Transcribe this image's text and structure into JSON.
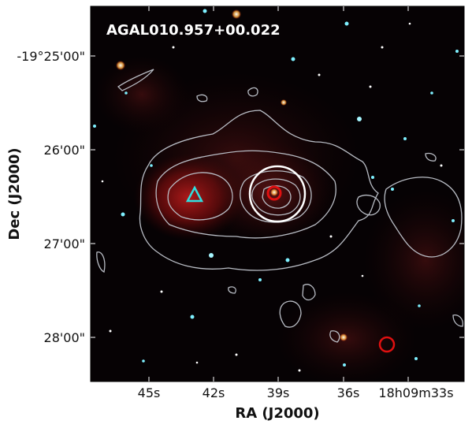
{
  "figure": {
    "title": "AGAL010.957+00.022",
    "x_axis": {
      "label": "RA (J2000)",
      "ticks": [
        "45s",
        "42s",
        "39s",
        "36s",
        "18h09m33s"
      ]
    },
    "y_axis": {
      "label": "Dec (J2000)",
      "ticks": [
        "-19°25'00\"",
        "26'00\"",
        "27'00\"",
        "28'00\""
      ]
    },
    "colors": {
      "background": "#050203",
      "nebula": "#c01818",
      "contour": "#b8bcc4",
      "beam_circle": "#ffffff",
      "marker_triangle": "#30e0e0",
      "marker_circle": "#e01010"
    },
    "markers": [
      {
        "type": "circle",
        "icon": "source-circle",
        "color": "#ffffff"
      },
      {
        "type": "triangle",
        "icon": "cyan-triangle",
        "color": "#30e0e0"
      },
      {
        "type": "circle",
        "icon": "red-circle",
        "color": "#e01010"
      }
    ]
  }
}
